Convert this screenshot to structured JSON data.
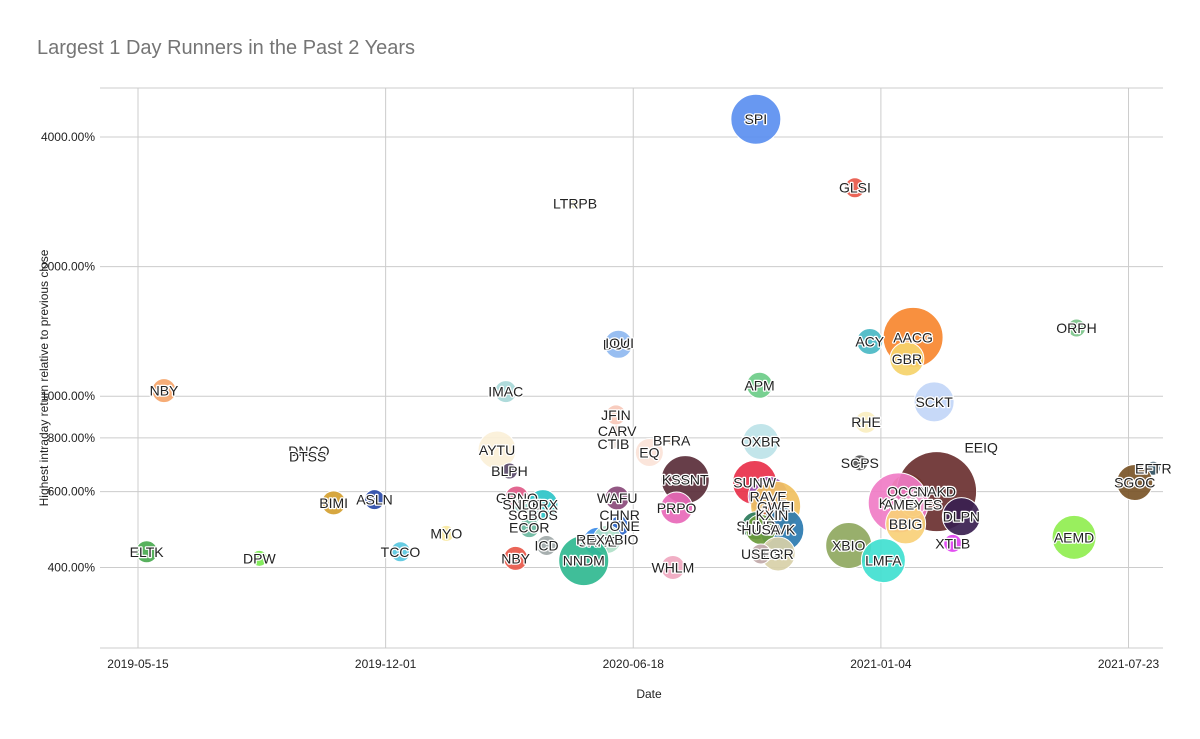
{
  "chart_data": {
    "type": "bubble",
    "title": "Largest 1 Day Runners in the Past 2 Years",
    "xlabel": "Date",
    "ylabel": "Highest intraday return relative to previous close",
    "x_ticks": [
      "2019-05-15",
      "2019-12-01",
      "2020-06-18",
      "2021-01-04",
      "2021-07-23"
    ],
    "y_ticks": [
      "400.00%",
      "600.00%",
      "800.00%",
      "1000.00%",
      "2000.00%",
      "4000.00%"
    ],
    "y_scale": "log",
    "xlim": [
      "2019-05-15",
      "2021-08-15"
    ],
    "ylim": [
      260,
      5200
    ],
    "points": [
      {
        "label": "SPI",
        "date": "2020-09-25",
        "y": 4400,
        "r": 25,
        "color": "#5b8ff0"
      },
      {
        "label": "GLSI",
        "date": "2020-12-14",
        "y": 3050,
        "r": 10,
        "color": "#e8584a"
      },
      {
        "label": "LTRPB",
        "date": "2020-05-02",
        "y": 2800,
        "r": 5,
        "color": "#f0e9b0"
      },
      {
        "label": "ORPH",
        "date": "2021-06-11",
        "y": 1440,
        "r": 9,
        "color": "#7cc48a"
      },
      {
        "label": "AACG",
        "date": "2021-01-30",
        "y": 1370,
        "r": 30,
        "color": "#f7872f"
      },
      {
        "label": "ACY",
        "date": "2020-12-26",
        "y": 1340,
        "r": 13,
        "color": "#4ab8c4"
      },
      {
        "label": "DUO",
        "date": "2020-06-06",
        "y": 1320,
        "r": 14,
        "color": "#8fb8f0"
      },
      {
        "label": "IOUI",
        "date": "2020-06-07",
        "y": 1330,
        "r": 3,
        "color": "#a0a0a0"
      },
      {
        "label": "GBR",
        "date": "2021-01-25",
        "y": 1220,
        "r": 17,
        "color": "#f5d26a"
      },
      {
        "label": "NBY",
        "date": "2019-06-05",
        "y": 1030,
        "r": 12,
        "color": "#f5a56a"
      },
      {
        "label": "IMAC",
        "date": "2020-03-07",
        "y": 1025,
        "r": 11,
        "color": "#a8d8d8"
      },
      {
        "label": "APM",
        "date": "2020-09-28",
        "y": 1060,
        "r": 13,
        "color": "#6dcc88"
      },
      {
        "label": "SCKT",
        "date": "2021-02-16",
        "y": 970,
        "r": 20,
        "color": "#c2d6f7"
      },
      {
        "label": "JFIN",
        "date": "2020-06-04",
        "y": 905,
        "r": 10,
        "color": "#f7c8b8"
      },
      {
        "label": "RHE",
        "date": "2020-12-23",
        "y": 870,
        "r": 11,
        "color": "#faeec0"
      },
      {
        "label": "CARV",
        "date": "2020-06-05",
        "y": 830,
        "r": 6,
        "color": "#f0d8d0"
      },
      {
        "label": "BFRA",
        "date": "2020-07-19",
        "y": 790,
        "r": 5,
        "color": "#f8e0c8"
      },
      {
        "label": "OXBR",
        "date": "2020-09-29",
        "y": 785,
        "r": 18,
        "color": "#bde3e8"
      },
      {
        "label": "CTIB",
        "date": "2020-06-02",
        "y": 775,
        "r": 5,
        "color": "#f2e6e0"
      },
      {
        "label": "AYTU",
        "date": "2020-02-29",
        "y": 750,
        "r": 19,
        "color": "#fbf0d8"
      },
      {
        "label": "EEIQ",
        "date": "2021-03-26",
        "y": 760,
        "r": 3,
        "color": "#dddddd"
      },
      {
        "label": "EQ",
        "date": "2020-07-01",
        "y": 740,
        "r": 14,
        "color": "#fbe3d8"
      },
      {
        "label": "DNCO",
        "date": "2019-09-30",
        "y": 745,
        "r": 2,
        "color": "#cccccc"
      },
      {
        "label": "DTSS",
        "date": "2019-09-29",
        "y": 725,
        "r": 2,
        "color": "#cccccc"
      },
      {
        "label": "SCPS",
        "date": "2020-12-18",
        "y": 700,
        "r": 8,
        "color": "#555555"
      },
      {
        "label": "EFTR",
        "date": "2021-08-12",
        "y": 680,
        "r": 7,
        "color": "#2f4f5f"
      },
      {
        "label": "BLPH",
        "date": "2020-03-10",
        "y": 670,
        "r": 8,
        "color": "#5a4a6a"
      },
      {
        "label": "KSSNT",
        "date": "2020-07-30",
        "y": 640,
        "r": 24,
        "color": "#5a2e3a"
      },
      {
        "label": "SUNW",
        "date": "2020-09-24",
        "y": 630,
        "r": 22,
        "color": "#e8304a"
      },
      {
        "label": "SGOC",
        "date": "2021-07-28",
        "y": 630,
        "r": 18,
        "color": "#7a5528"
      },
      {
        "label": "WAFU",
        "date": "2020-06-05",
        "y": 580,
        "r": 12,
        "color": "#8a4a7a"
      },
      {
        "label": "OCGN",
        "date": "2021-01-26",
        "y": 600,
        "r": 18,
        "color": "#b8860b"
      },
      {
        "label": "NAKD",
        "date": "2021-02-18",
        "y": 600,
        "r": 40,
        "color": "#6a3030"
      },
      {
        "label": "KOSS",
        "date": "2021-01-18",
        "y": 565,
        "r": 30,
        "color": "#f07cc6"
      },
      {
        "label": "RAVE",
        "date": "2020-10-05",
        "y": 585,
        "r": 20,
        "color": "#9b59b6"
      },
      {
        "label": "GRNQ",
        "date": "2020-03-16",
        "y": 580,
        "r": 12,
        "color": "#e05a88"
      },
      {
        "label": "SNDE",
        "date": "2020-03-20",
        "y": 560,
        "r": 8,
        "color": "#8fd4c8"
      },
      {
        "label": "ORX",
        "date": "2020-04-06",
        "y": 560,
        "r": 15,
        "color": "#2ec4c8"
      },
      {
        "label": "BIMI",
        "date": "2019-10-20",
        "y": 565,
        "r": 12,
        "color": "#d4a030"
      },
      {
        "label": "ASLN",
        "date": "2019-11-22",
        "y": 575,
        "r": 10,
        "color": "#2a4aa8"
      },
      {
        "label": "AMEYES",
        "date": "2021-01-30",
        "y": 560,
        "r": 12,
        "color": "#f0a0d0"
      },
      {
        "label": "PRPO",
        "date": "2020-07-23",
        "y": 550,
        "r": 16,
        "color": "#e868b8"
      },
      {
        "label": "GWEI",
        "date": "2020-10-11",
        "y": 555,
        "r": 25,
        "color": "#f0c060"
      },
      {
        "label": "DLPN",
        "date": "2021-03-10",
        "y": 525,
        "r": 19,
        "color": "#3a2050"
      },
      {
        "label": "SGBOS",
        "date": "2020-03-29",
        "y": 530,
        "r": 8,
        "color": "#a0d8c8"
      },
      {
        "label": "KXIN",
        "date": "2020-10-08",
        "y": 530,
        "r": 12,
        "color": "#c05a3a"
      },
      {
        "label": "CHNR",
        "date": "2020-06-07",
        "y": 530,
        "r": 5,
        "color": "#cccccc"
      },
      {
        "label": "UONE",
        "date": "2020-06-07",
        "y": 500,
        "r": 10,
        "color": "#2a64c8"
      },
      {
        "label": "BBIG",
        "date": "2021-01-24",
        "y": 505,
        "r": 20,
        "color": "#f8d078"
      },
      {
        "label": "SUNP",
        "date": "2020-09-25",
        "y": 500,
        "r": 14,
        "color": "#2a7a5a"
      },
      {
        "label": "AVK",
        "date": "2020-10-16",
        "y": 490,
        "r": 22,
        "color": "#2a7ab0"
      },
      {
        "label": "HUSA",
        "date": "2020-09-29",
        "y": 490,
        "r": 15,
        "color": "#6a9a3a"
      },
      {
        "label": "ECOR",
        "date": "2020-03-26",
        "y": 495,
        "r": 10,
        "color": "#6ab8a0"
      },
      {
        "label": "MYO",
        "date": "2020-01-19",
        "y": 480,
        "r": 8,
        "color": "#f8e8a0"
      },
      {
        "label": "SRNE",
        "date": "2020-05-20",
        "y": 460,
        "r": 14,
        "color": "#3a8ae8"
      },
      {
        "label": "REXABIO",
        "date": "2020-05-28",
        "y": 465,
        "r": 14,
        "color": "#b0e0c8"
      },
      {
        "label": "ICD",
        "date": "2020-04-09",
        "y": 450,
        "r": 10,
        "color": "#a0a8a8"
      },
      {
        "label": "AEMD",
        "date": "2021-06-09",
        "y": 470,
        "r": 22,
        "color": "#90ee50"
      },
      {
        "label": "XTLB",
        "date": "2021-03-03",
        "y": 455,
        "r": 9,
        "color": "#e040f0"
      },
      {
        "label": "XBIO",
        "date": "2020-12-09",
        "y": 450,
        "r": 23,
        "color": "#8fa860"
      },
      {
        "label": "GRR",
        "date": "2020-10-13",
        "y": 430,
        "r": 17,
        "color": "#d8d0a8"
      },
      {
        "label": "USEG",
        "date": "2020-09-29",
        "y": 430,
        "r": 10,
        "color": "#c0a8a8"
      },
      {
        "label": "LMFA",
        "date": "2021-01-06",
        "y": 415,
        "r": 22,
        "color": "#40e0d0"
      },
      {
        "label": "NNDM",
        "date": "2020-05-09",
        "y": 415,
        "r": 25,
        "color": "#30b890"
      },
      {
        "label": "NBY",
        "date": "2020-03-15",
        "y": 420,
        "r": 12,
        "color": "#e8584a"
      },
      {
        "label": "ELTK",
        "date": "2019-05-22",
        "y": 435,
        "r": 11,
        "color": "#4aaa50"
      },
      {
        "label": "DPW",
        "date": "2019-08-21",
        "y": 420,
        "r": 8,
        "color": "#7ae850"
      },
      {
        "label": "TCCO",
        "date": "2019-12-13",
        "y": 435,
        "r": 10,
        "color": "#5ac8e0"
      },
      {
        "label": "WHLM",
        "date": "2020-07-20",
        "y": 400,
        "r": 12,
        "color": "#f0a8c0"
      }
    ]
  }
}
